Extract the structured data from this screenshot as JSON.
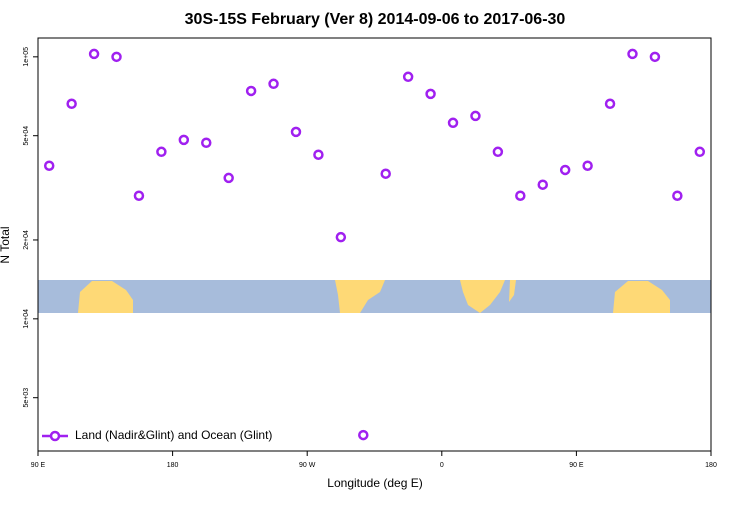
{
  "chart_data": {
    "type": "scatter",
    "title": "30S-15S February (Ver 8)   2014-09-06 to 2017-06-30",
    "x_label": "Longitude (deg E)",
    "y_label": "N Total",
    "log_y": true,
    "xlim": [
      90,
      540
    ],
    "ylim": [
      3130,
      118000
    ],
    "xticks": [
      {
        "value": 90,
        "label": "90 E"
      },
      {
        "value": 180,
        "label": "180"
      },
      {
        "value": 270,
        "label": "90 W"
      },
      {
        "value": 360,
        "label": "0"
      },
      {
        "value": 450,
        "label": "90 E"
      },
      {
        "value": 540,
        "label": "180"
      }
    ],
    "yticks": [
      {
        "value": 5000,
        "label": "5e+03"
      },
      {
        "value": 10000,
        "label": "1e+04"
      },
      {
        "value": 20000,
        "label": "2e+04"
      },
      {
        "value": 50000,
        "label": "5e+04"
      },
      {
        "value": 100000,
        "label": "1e+05"
      }
    ],
    "legend_position": "bottom-left",
    "series": [
      {
        "name": "Land (Nadir&Glint) and Ocean (Glint)",
        "color": "#a020f0",
        "x": [
          97.5,
          112.5,
          127.5,
          142.5,
          157.5,
          172.5,
          187.5,
          202.5,
          217.5,
          232.5,
          247.5,
          262.5,
          277.5,
          292.5,
          307.5,
          322.5,
          337.5,
          352.5,
          367.5,
          382.5,
          397.5,
          412.5,
          427.5,
          442.5,
          457.5,
          472.5,
          487.5,
          502.5,
          517.5,
          532.5
        ],
        "values": [
          38400,
          66200,
          102600,
          100000,
          29500,
          43400,
          48200,
          47000,
          34500,
          74100,
          78900,
          51700,
          42300,
          20500,
          3600,
          35800,
          83900,
          72200,
          56000,
          59500,
          43400,
          29500,
          32500,
          37000,
          38400,
          66200,
          102600,
          100000,
          29500,
          43400
        ]
      }
    ]
  }
}
